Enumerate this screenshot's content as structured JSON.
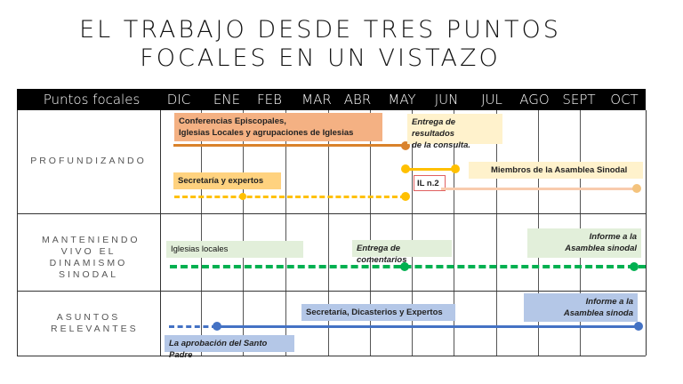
{
  "title": [
    "EL TRABAJO DESDE TRES PUNTOS",
    "FOCALES EN UN VISTAZO"
  ],
  "header": {
    "label": "Puntos focales",
    "months": [
      "DIC",
      "ENE",
      "FEB",
      "MAR",
      "ABR",
      "MAY",
      "JUN",
      "JUL",
      "AGO",
      "SEPT",
      "OCT"
    ]
  },
  "rows": [
    {
      "label": "PROFUNDIZANDO",
      "items": {
        "conferencias": "Conferencias Episcopales,",
        "conferencias2": "Iglesias Locales y agrupaciones de Iglesias",
        "entrega1": "Entrega de resultados",
        "entrega2": "de la consulta.",
        "secretaria": "Secretaría y expertos",
        "il": "IL n.2",
        "miembros": "Miembros de la Asamblea Sinodal"
      }
    },
    {
      "label": "MANTENIENDO VIVO EL DINAMISMO SINODAL",
      "items": {
        "iglesias": "Iglesias locales",
        "comentarios": "Entrega de comentarios",
        "informe1": "Informe a la",
        "informe2": "Asamblea sinodal"
      }
    },
    {
      "label": "ASUNTOS RELEVANTES",
      "items": {
        "secretaria": "Secretaría, Dicasterios y Expertos",
        "informe1": "Informe a la",
        "informe2": "Asamblea sinoda",
        "aprobacion": "La aprobación del Santo Padre"
      }
    }
  ],
  "colors": {
    "orange": "#d9822b",
    "orange_box": "#f4b183",
    "yellow": "#ffc000",
    "yellow_box": "#ffd27f",
    "cream": "#fff2cc",
    "pink": "#f8cbad",
    "green": "#00b050",
    "green_box": "#e2efda",
    "blue": "#4472c4",
    "blue_box": "#b4c7e7"
  }
}
